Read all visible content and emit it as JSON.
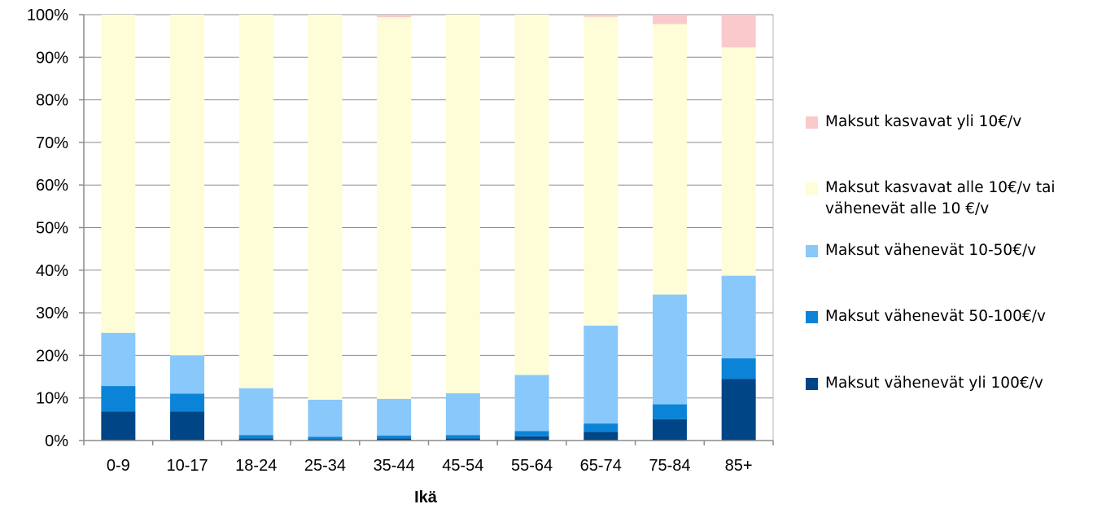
{
  "chart_data": {
    "type": "bar",
    "stacked": true,
    "percent_stacked": true,
    "title": "",
    "xlabel": "Ikä",
    "ylabel": "",
    "ylim": [
      0,
      100
    ],
    "yticks": [
      "0%",
      "10%",
      "20%",
      "30%",
      "40%",
      "50%",
      "60%",
      "70%",
      "80%",
      "90%",
      "100%"
    ],
    "categories": [
      "0-9",
      "10-17",
      "18-24",
      "25-34",
      "35-44",
      "45-54",
      "55-64",
      "65-74",
      "75-84",
      "85+"
    ],
    "series": [
      {
        "name": "Maksut vähenevät yli 100€/v",
        "color": "#004586",
        "values": [
          6.8,
          6.8,
          0.5,
          0.3,
          0.5,
          0.5,
          1.0,
          2.0,
          5.0,
          14.5
        ]
      },
      {
        "name": "Maksut vähenevät 50-100€/v",
        "color": "#0b84d8",
        "values": [
          6.0,
          4.2,
          0.8,
          0.6,
          0.7,
          0.8,
          1.2,
          2.0,
          3.5,
          4.8
        ]
      },
      {
        "name": "Maksut vähenevät 10-50€/v",
        "color": "#89c8fb",
        "values": [
          12.5,
          9.0,
          11.0,
          8.7,
          8.6,
          9.8,
          13.2,
          23.0,
          25.8,
          19.4
        ]
      },
      {
        "name": "Maksut kasvavat alle 10€/v tai vähenevät alle 10 €/v",
        "color": "#fefdd7",
        "values": [
          74.7,
          80.0,
          87.7,
          90.4,
          89.6,
          88.9,
          84.6,
          72.5,
          63.5,
          53.6
        ]
      },
      {
        "name": "Maksut kasvavat yli 10€/v",
        "color": "#f9c9cb",
        "values": [
          0,
          0,
          0,
          0,
          0.6,
          0,
          0,
          0.5,
          2.2,
          7.7
        ]
      }
    ],
    "legend_position": "right",
    "grid": true
  }
}
